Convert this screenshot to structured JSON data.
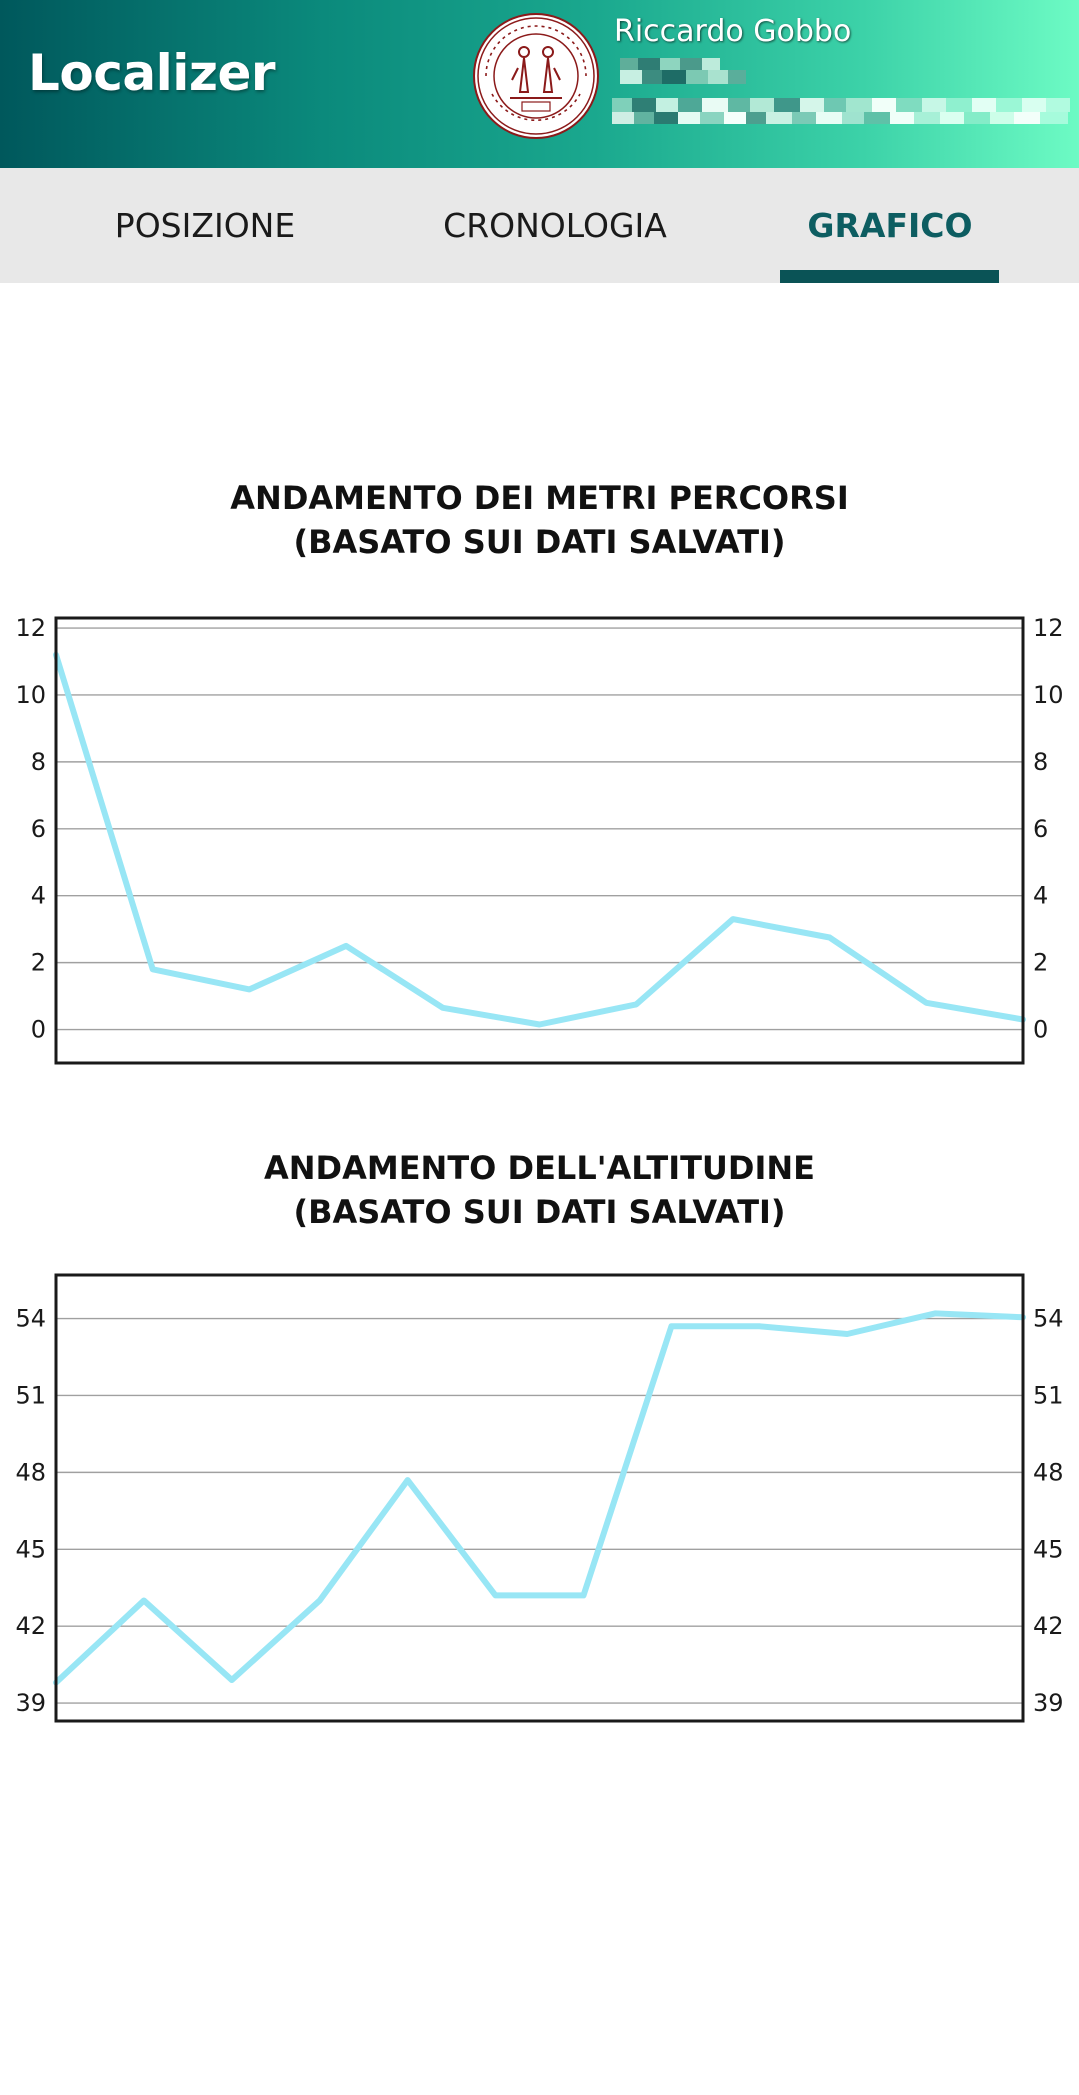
{
  "app": {
    "title": "Localizer",
    "user_name": "Riccardo Gobbo",
    "logo": "university-seal",
    "header_gradient": [
      "#00585c",
      "#6dfbc4"
    ]
  },
  "tabs": [
    {
      "label": "POSIZIONE",
      "active": false
    },
    {
      "label": "CRONOLOGIA",
      "active": false
    },
    {
      "label": "GRAFICO",
      "active": true
    }
  ],
  "colors": {
    "accent": "#0d5d61",
    "line": "#98e6f5"
  },
  "chart_data": [
    {
      "type": "line",
      "title_line1": "ANDAMENTO DEI METRI PERCORSI",
      "title_line2": "(BASATO SUI DATI SALVATI)",
      "y": [
        11.2,
        1.8,
        1.2,
        2.5,
        0.65,
        0.15,
        0.75,
        3.3,
        2.75,
        0.8,
        0.3
      ],
      "ylim": [
        -1,
        12.3
      ],
      "yticks": [
        0,
        2,
        4,
        6,
        8,
        10,
        12
      ],
      "tick_labels": [
        "0",
        "2",
        "4",
        "6",
        "8",
        "10",
        "12"
      ],
      "grid": true,
      "dual_axis_labels": true
    },
    {
      "type": "line",
      "title_line1": "ANDAMENTO DELL'ALTITUDINE",
      "title_line2": "(BASATO SUI DATI SALVATI)",
      "y": [
        39.8,
        43.0,
        39.9,
        43.0,
        47.7,
        43.2,
        43.2,
        53.7,
        53.7,
        53.4,
        54.2,
        54.05
      ],
      "ylim": [
        38.3,
        55.7
      ],
      "yticks": [
        39,
        42,
        45,
        48,
        51,
        54
      ],
      "tick_labels": [
        "39",
        "42",
        "45",
        "48",
        "51",
        "54"
      ],
      "grid": true,
      "dual_axis_labels": true
    }
  ]
}
